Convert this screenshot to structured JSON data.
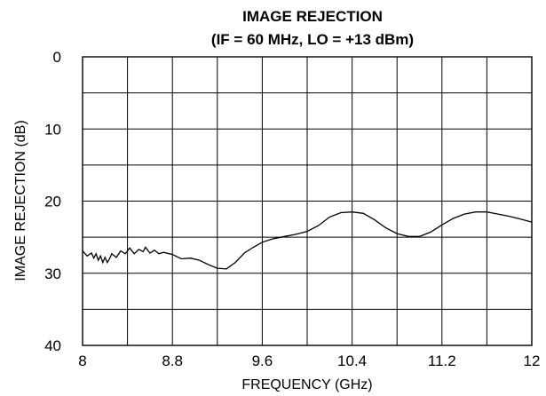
{
  "chart_data": {
    "type": "line",
    "title": "IMAGE REJECTION",
    "subtitle": "(IF = 60 MHz, LO = +13 dBm)",
    "xlabel": "FREQUENCY (GHz)",
    "ylabel": "IMAGE REJECTION (dB)",
    "xlim": [
      8,
      12
    ],
    "ylim": [
      0,
      40
    ],
    "y_inverted": true,
    "x_ticks": [
      "8",
      "8.8",
      "9.6",
      "10.4",
      "11.2",
      "12"
    ],
    "y_ticks": [
      "0",
      "10",
      "20",
      "30",
      "40"
    ],
    "grid": true,
    "series": [
      {
        "x": [
          8.0,
          8.04,
          8.08,
          8.1,
          8.12,
          8.14,
          8.16,
          8.18,
          8.2,
          8.22,
          8.24,
          8.26,
          8.3,
          8.34,
          8.38,
          8.42,
          8.46,
          8.5,
          8.54,
          8.56,
          8.6,
          8.64,
          8.68,
          8.72,
          8.8,
          8.88,
          8.96,
          9.04,
          9.12,
          9.2,
          9.28,
          9.36,
          9.44,
          9.52,
          9.6,
          9.7,
          9.8,
          9.9,
          10.0,
          10.1,
          10.2,
          10.3,
          10.4,
          10.5,
          10.6,
          10.7,
          10.8,
          10.9,
          11.0,
          11.1,
          11.2,
          11.3,
          11.4,
          11.5,
          11.6,
          11.7,
          11.8,
          11.9,
          12.0
        ],
        "y": [
          26.9,
          27.6,
          27.2,
          27.9,
          27.3,
          28.2,
          27.6,
          28.5,
          27.8,
          28.5,
          28.0,
          27.3,
          27.8,
          26.9,
          27.3,
          26.5,
          27.3,
          26.7,
          27.0,
          26.4,
          27.2,
          26.8,
          27.3,
          27.1,
          27.4,
          28.0,
          27.9,
          28.2,
          28.8,
          29.3,
          29.4,
          28.5,
          27.2,
          26.4,
          25.7,
          25.2,
          24.9,
          24.6,
          24.2,
          23.4,
          22.2,
          21.6,
          21.5,
          21.7,
          22.6,
          23.7,
          24.5,
          24.9,
          24.9,
          24.3,
          23.3,
          22.4,
          21.8,
          21.5,
          21.5,
          21.8,
          22.1,
          22.5,
          22.9
        ]
      }
    ]
  }
}
